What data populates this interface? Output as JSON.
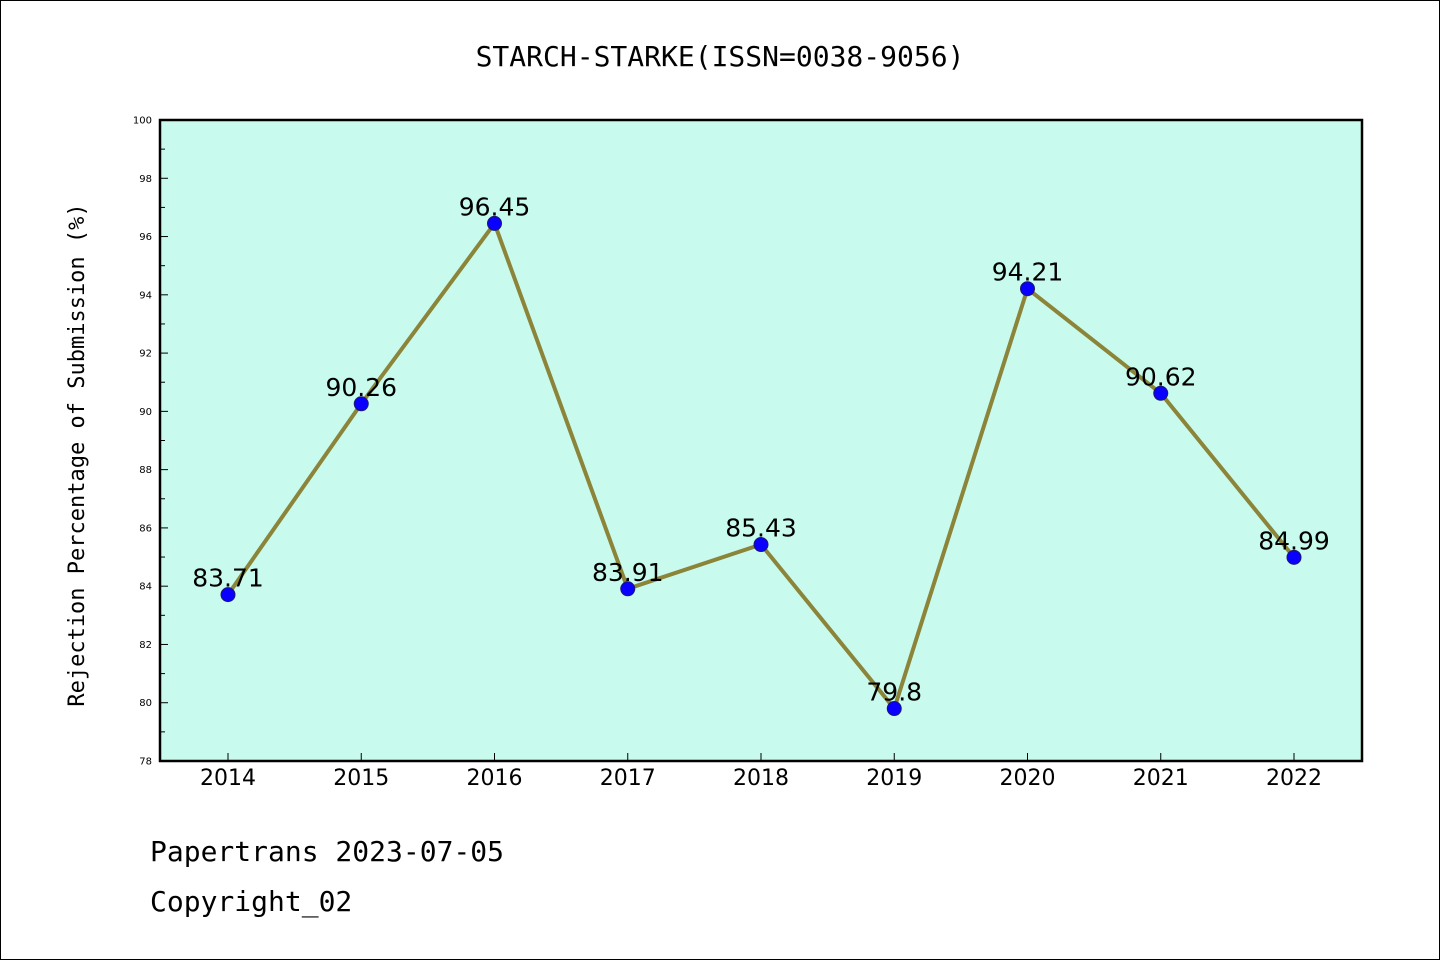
{
  "colors": {
    "plot_background": "#c8fbee",
    "line": "#8b8439",
    "marker": "#0a00ff",
    "marker_edge": "#1a1a6e",
    "axis": "#000000"
  },
  "footer": {
    "line1": "Papertrans 2023-07-05",
    "line2": "Copyright_02"
  },
  "chart_data": {
    "type": "line",
    "title": "STARCH-STARKE(ISSN=0038-9056)",
    "xlabel": "",
    "ylabel": "Rejection Percentage of Submission (%)",
    "categories": [
      "2014",
      "2015",
      "2016",
      "2017",
      "2018",
      "2019",
      "2020",
      "2021",
      "2022"
    ],
    "series": [
      {
        "values": [
          83.71,
          90.26,
          96.45,
          83.91,
          85.43,
          79.8,
          94.21,
          90.62,
          84.99
        ],
        "data_labels": [
          "83.71",
          "90.26",
          "96.45",
          "83.91",
          "85.43",
          "79.8",
          "94.21",
          "90.62",
          "84.99"
        ]
      }
    ],
    "ylim": [
      78,
      100
    ],
    "yticks": [
      "78",
      "80",
      "82",
      "84",
      "86",
      "88",
      "90",
      "92",
      "94",
      "96",
      "98",
      "100"
    ],
    "grid": false,
    "legend": "none"
  }
}
